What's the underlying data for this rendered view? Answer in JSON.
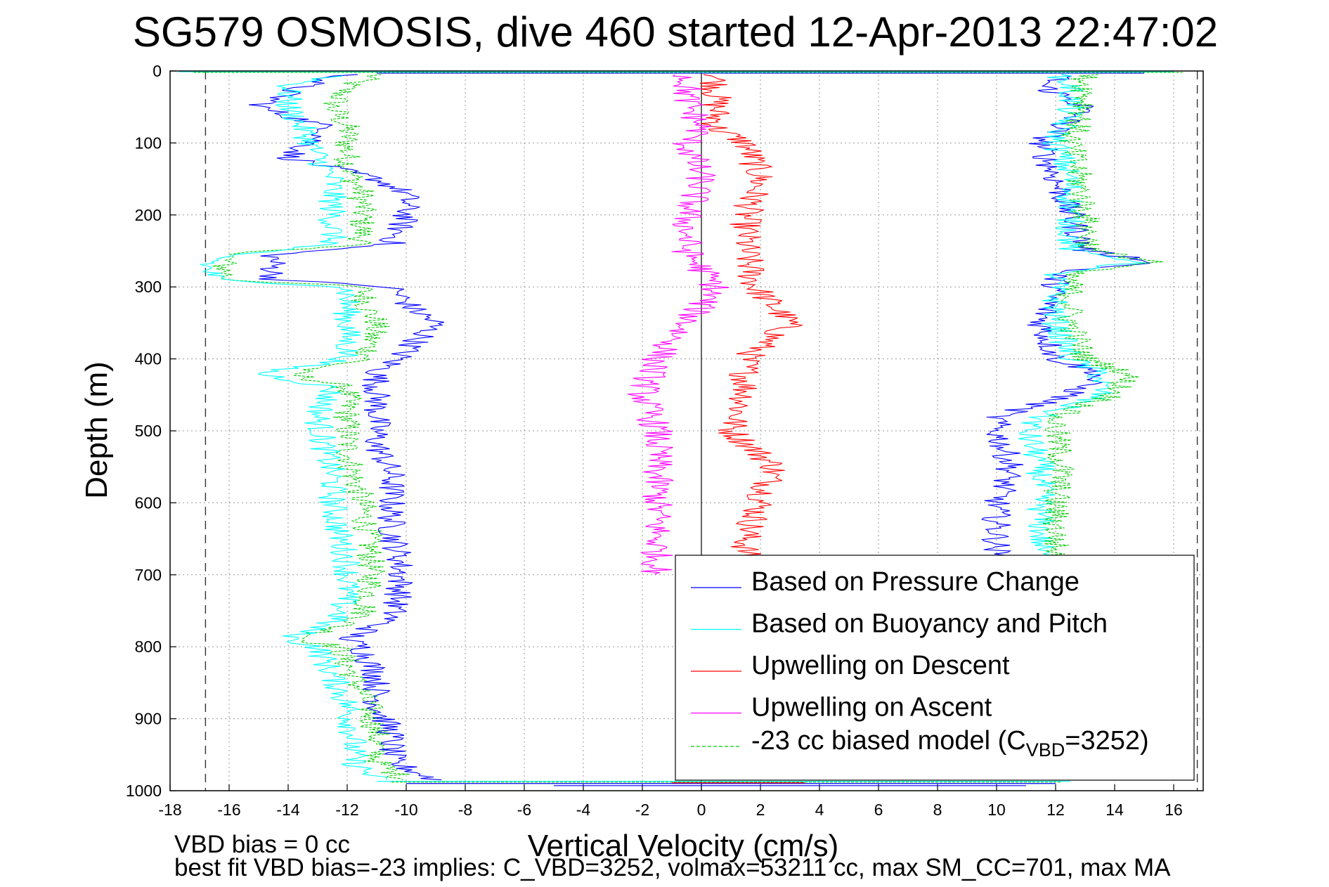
{
  "chart_data": {
    "type": "line",
    "title": "SG579 OSMOSIS, dive 460 started 12-Apr-2013 22:47:02",
    "xlabel": "Vertical Velocity (cm/s)",
    "ylabel": "Depth (m)",
    "xlim": [
      -18,
      17
    ],
    "ylim": [
      0,
      1000
    ],
    "y_reversed": true,
    "grid": true,
    "x_ticks": [
      -18,
      -16,
      -14,
      -12,
      -10,
      -8,
      -6,
      -4,
      -2,
      0,
      2,
      4,
      6,
      8,
      10,
      12,
      14,
      16
    ],
    "y_ticks": [
      0,
      100,
      200,
      300,
      400,
      500,
      600,
      700,
      800,
      900,
      1000
    ],
    "vertical_reference_lines": [
      -16.8,
      16.8
    ],
    "zero_line": 0,
    "legend_placement": "bottom-right",
    "legend": [
      {
        "label": "Based on Pressure Change",
        "color": "#0000ff",
        "dash": "solid"
      },
      {
        "label": "Based on Buoyancy and Pitch",
        "color": "#00ffff",
        "dash": "solid"
      },
      {
        "label": "Upwelling on Descent",
        "color": "#ff0000",
        "dash": "solid"
      },
      {
        "label": "Upwelling on Ascent",
        "color": "#ff00ff",
        "dash": "solid"
      },
      {
        "label_prefix": "-23 cc biased model (C",
        "label_sub": "VBD",
        "label_suffix": "=3252)",
        "color": "#00cc00",
        "dash": "dashed"
      }
    ],
    "series": [
      {
        "name": "Based on Pressure Change",
        "color": "#0000ff",
        "side": "descent",
        "depth": [
          5,
          20,
          50,
          80,
          120,
          150,
          170,
          200,
          240,
          255,
          270,
          290,
          300,
          330,
          350,
          370,
          400,
          420,
          440,
          480,
          520,
          560,
          600,
          640,
          680,
          720,
          760,
          790,
          800,
          840,
          880,
          920,
          960,
          985
        ],
        "values": [
          -12,
          -13.5,
          -15,
          -12.5,
          -14,
          -11,
          -10,
          -10,
          -10.5,
          -14.5,
          -14.5,
          -14.5,
          -10.5,
          -9.8,
          -9,
          -9.5,
          -10.3,
          -11,
          -11,
          -11,
          -11,
          -10.5,
          -10.5,
          -10.5,
          -10.2,
          -10.2,
          -10.5,
          -12,
          -11.5,
          -11,
          -11,
          -10.5,
          -10.5,
          -9
        ]
      },
      {
        "name": "Based on Buoyancy and Pitch",
        "color": "#00ffff",
        "side": "descent",
        "depth": [
          5,
          20,
          50,
          80,
          120,
          150,
          170,
          200,
          240,
          255,
          270,
          290,
          300,
          330,
          350,
          370,
          400,
          420,
          440,
          480,
          520,
          560,
          600,
          640,
          680,
          720,
          760,
          790,
          800,
          840,
          880,
          920,
          960,
          985
        ],
        "values": [
          -12,
          -14,
          -14,
          -13.5,
          -13,
          -12.5,
          -12.5,
          -12.5,
          -12.5,
          -16,
          -16.8,
          -16.5,
          -12,
          -12,
          -12,
          -12,
          -12,
          -15,
          -12.5,
          -13,
          -12.8,
          -12.5,
          -12.5,
          -12.3,
          -12,
          -12,
          -12.3,
          -14,
          -13,
          -12.5,
          -12,
          -11.8,
          -11.8,
          -11
        ]
      },
      {
        "name": "-23 cc biased model (CVBD=3252)",
        "color": "#00cc00",
        "side": "descent",
        "depth": [
          5,
          20,
          50,
          80,
          120,
          150,
          170,
          200,
          240,
          255,
          270,
          290,
          300,
          330,
          350,
          370,
          400,
          420,
          440,
          480,
          520,
          560,
          600,
          640,
          680,
          720,
          760,
          790,
          800,
          840,
          880,
          920,
          960,
          985
        ],
        "values": [
          -11,
          -12,
          -12.5,
          -12,
          -12,
          -11.8,
          -11.5,
          -11.5,
          -11.5,
          -16,
          -16.2,
          -16,
          -11.5,
          -11.3,
          -11,
          -11.2,
          -11.3,
          -14,
          -12,
          -12,
          -12,
          -11.8,
          -11.5,
          -11.3,
          -11.2,
          -11.2,
          -11.5,
          -13.5,
          -12.3,
          -11.8,
          -11.3,
          -11,
          -11,
          -10
        ]
      },
      {
        "name": "Upwelling on Descent",
        "color": "#ff0000",
        "side": "center",
        "depth": [
          5,
          40,
          80,
          100,
          150,
          200,
          250,
          300,
          350,
          400,
          450,
          500,
          550,
          600,
          650,
          690
        ],
        "values": [
          0.5,
          0.5,
          0.5,
          1.5,
          2,
          1.5,
          1.5,
          1.8,
          3,
          1.5,
          1.5,
          1,
          2.5,
          2,
          1.5,
          1.5
        ]
      },
      {
        "name": "Upwelling on Ascent",
        "color": "#ff00ff",
        "side": "center",
        "depth": [
          5,
          40,
          80,
          100,
          150,
          200,
          250,
          300,
          350,
          400,
          450,
          500,
          550,
          600,
          650,
          700
        ],
        "values": [
          -0.5,
          -0.5,
          0,
          -0.5,
          0,
          -0.5,
          -0.5,
          0.5,
          -0.5,
          -1.5,
          -2,
          -1.5,
          -1.5,
          -1.5,
          -1.5,
          -1.5
        ]
      },
      {
        "name": "Based on Pressure Change",
        "color": "#0000ff",
        "side": "ascent",
        "depth": [
          5,
          20,
          50,
          100,
          150,
          200,
          250,
          265,
          280,
          300,
          350,
          400,
          420,
          450,
          480,
          500,
          550,
          600,
          650,
          680
        ],
        "values": [
          12.5,
          11.5,
          13,
          11.5,
          12,
          12.5,
          13,
          15.5,
          12,
          12,
          11.5,
          12,
          13.5,
          12.5,
          10,
          10,
          10.5,
          10,
          10,
          10
        ]
      },
      {
        "name": "Based on Buoyancy and Pitch",
        "color": "#00ffff",
        "side": "ascent",
        "depth": [
          5,
          20,
          50,
          100,
          150,
          200,
          250,
          265,
          280,
          300,
          350,
          400,
          420,
          450,
          480,
          500,
          550,
          600,
          650,
          680
        ],
        "values": [
          12,
          12.5,
          12.5,
          12,
          12.5,
          12.5,
          12.5,
          15,
          12,
          12,
          12,
          12.5,
          13.5,
          13.5,
          11.5,
          11,
          11.5,
          11.5,
          11.5,
          11.5
        ]
      },
      {
        "name": "-23 cc biased model (CVBD=3252)",
        "color": "#00cc00",
        "side": "ascent",
        "depth": [
          5,
          20,
          50,
          100,
          150,
          200,
          250,
          265,
          280,
          300,
          350,
          400,
          420,
          450,
          480,
          500,
          550,
          600,
          650,
          680
        ],
        "values": [
          13,
          13,
          13,
          12.5,
          12.8,
          13,
          13.2,
          15.5,
          12.5,
          12.5,
          12.5,
          13,
          14.5,
          14,
          12,
          12,
          12.2,
          12,
          12,
          12
        ]
      }
    ]
  },
  "footer": {
    "line1": "VBD bias = 0 cc",
    "line2": "best fit VBD bias=-23 implies: C_VBD=3252, volmax=53211 cc, max SM_CC=701, max MA"
  }
}
